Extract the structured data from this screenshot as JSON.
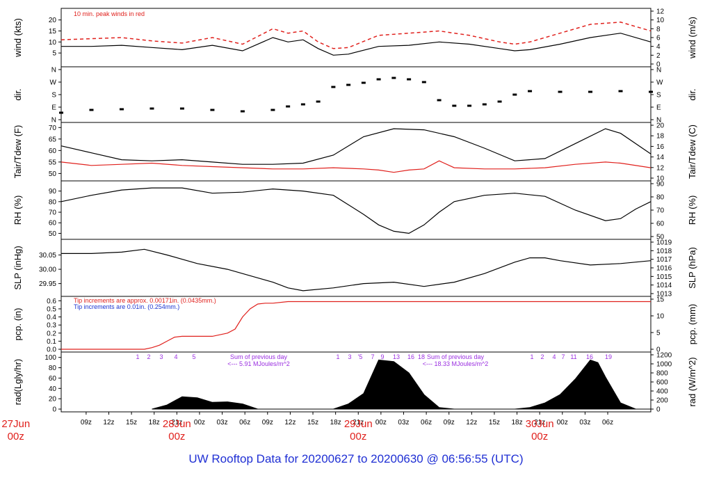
{
  "title": "UW Rooftop Data for 20200627  to  20200630 @ 06:56:55  (UTC)",
  "colors": {
    "red": "#e0201c",
    "blue": "#1c34d0",
    "purple": "#9a2ee0",
    "title_blue": "#1f2fd4"
  },
  "chart_data": [
    {
      "id": "wind",
      "type": "line",
      "ylabel_left": "wind (kts)",
      "ylabel_right": "wind (m/s)",
      "yticks_left": [
        "5",
        "10",
        "15",
        "20"
      ],
      "yticks_right": [
        "0",
        "2",
        "4",
        "6",
        "8",
        "10",
        "12"
      ],
      "ylim": [
        0,
        24
      ],
      "annotation": "10 min. peak winds in red",
      "series": [
        {
          "name": "wind",
          "color": "#000000",
          "x": [
            0,
            4,
            8,
            12,
            16,
            20,
            24,
            28,
            30,
            32,
            34,
            36,
            38,
            42,
            46,
            50,
            54,
            58,
            60,
            62,
            66,
            70,
            74,
            78
          ],
          "values": [
            8,
            8,
            8.5,
            7.5,
            6.5,
            8.5,
            6,
            12,
            10,
            11,
            7,
            4,
            4.5,
            8,
            8.5,
            10,
            9,
            7,
            6,
            6.5,
            9,
            12,
            14,
            10
          ]
        },
        {
          "name": "10 min. peak",
          "color": "#e0201c",
          "x": [
            0,
            4,
            8,
            12,
            16,
            20,
            24,
            28,
            30,
            32,
            34,
            36,
            38,
            42,
            46,
            50,
            54,
            58,
            60,
            62,
            66,
            70,
            74,
            78
          ],
          "values": [
            11,
            11.5,
            12,
            10.5,
            9.5,
            12,
            9,
            16,
            14,
            15,
            10,
            7,
            7.5,
            13,
            14,
            15,
            13,
            10,
            9,
            10,
            14,
            18,
            19,
            15
          ]
        }
      ]
    },
    {
      "id": "dir",
      "type": "scatter",
      "ylabel_left": "dir.",
      "ylabel_right": "dir.",
      "yticks_left": [
        "N",
        "E",
        "S",
        "W",
        "N"
      ],
      "yticks_right": [
        "N",
        "E",
        "S",
        "W",
        "N"
      ],
      "ylim": [
        0,
        360
      ],
      "series": [
        {
          "name": "direction",
          "x": [
            0,
            4,
            8,
            12,
            16,
            20,
            24,
            28,
            30,
            32,
            34,
            36,
            38,
            40,
            42,
            44,
            46,
            48,
            50,
            52,
            54,
            56,
            58,
            60,
            62,
            66,
            70,
            74,
            78
          ],
          "values": [
            50,
            70,
            75,
            80,
            80,
            70,
            60,
            70,
            95,
            110,
            130,
            235,
            250,
            265,
            290,
            300,
            290,
            270,
            140,
            100,
            100,
            110,
            130,
            180,
            205,
            200,
            200,
            205,
            200
          ]
        }
      ]
    },
    {
      "id": "temp",
      "type": "line",
      "ylabel_left": "Tair/Tdew (F)",
      "ylabel_right": "Tair/Tdew (C)",
      "yticks_left": [
        "50",
        "55",
        "60",
        "65",
        "70"
      ],
      "yticks_right": [
        "10",
        "12",
        "14",
        "16",
        "18",
        "20"
      ],
      "ylim": [
        48,
        71
      ],
      "series": [
        {
          "name": "Tair",
          "color": "#000000",
          "x": [
            0,
            4,
            8,
            12,
            16,
            20,
            24,
            28,
            32,
            36,
            40,
            44,
            48,
            52,
            56,
            60,
            64,
            68,
            72,
            74,
            78
          ],
          "values": [
            62,
            59,
            56,
            55.5,
            56,
            55,
            54,
            54,
            54.5,
            58,
            66,
            69.5,
            69,
            66,
            61,
            55.5,
            56.5,
            63,
            69.5,
            67.5,
            58.5
          ]
        },
        {
          "name": "Tdew",
          "color": "#e0201c",
          "x": [
            0,
            4,
            8,
            12,
            16,
            20,
            24,
            28,
            32,
            36,
            40,
            42,
            44,
            46,
            48,
            50,
            52,
            56,
            60,
            64,
            68,
            72,
            74,
            78
          ],
          "values": [
            55,
            53.5,
            54,
            54.5,
            53.5,
            53,
            52.5,
            52,
            52,
            52.5,
            52,
            51.5,
            50.5,
            51.5,
            52,
            55.5,
            52.5,
            52,
            52,
            52.5,
            54,
            55,
            54.5,
            52.5
          ]
        }
      ]
    },
    {
      "id": "rh",
      "type": "line",
      "ylabel_left": "RH (%)",
      "ylabel_right": "RH (%)",
      "yticks_left": [
        "50",
        "60",
        "70",
        "80",
        "90"
      ],
      "yticks_right": [
        "50",
        "60",
        "70",
        "80",
        "90"
      ],
      "ylim": [
        47,
        97
      ],
      "series": [
        {
          "name": "RH",
          "color": "#000000",
          "x": [
            0,
            4,
            8,
            12,
            16,
            20,
            24,
            28,
            32,
            36,
            40,
            42,
            44,
            46,
            48,
            50,
            52,
            56,
            60,
            64,
            68,
            72,
            74,
            76,
            78
          ],
          "values": [
            80,
            86,
            91,
            93,
            93,
            88,
            89,
            92,
            90,
            86,
            68,
            58,
            52,
            50,
            58,
            70,
            80,
            86,
            88,
            85,
            72,
            62,
            64,
            73,
            80
          ]
        }
      ]
    },
    {
      "id": "slp",
      "type": "line",
      "ylabel_left": "SLP (inHg)",
      "ylabel_right": "SLP (hPa)",
      "yticks_left": [
        "29.95",
        "30.00",
        "30.05"
      ],
      "yticks_right": [
        "1013",
        "1014",
        "1015",
        "1016",
        "1017",
        "1018",
        "1019"
      ],
      "ylim": [
        29.915,
        30.095
      ],
      "series": [
        {
          "name": "SLP",
          "color": "#000000",
          "x": [
            0,
            4,
            8,
            11,
            14,
            18,
            22,
            26,
            28,
            30,
            32,
            36,
            40,
            44,
            48,
            52,
            56,
            60,
            62,
            64,
            66,
            70,
            74,
            78
          ],
          "values": [
            30.055,
            30.055,
            30.06,
            30.07,
            30.05,
            30.02,
            30.0,
            29.97,
            29.955,
            29.935,
            29.925,
            29.935,
            29.95,
            29.955,
            29.94,
            29.955,
            29.985,
            30.025,
            30.04,
            30.04,
            30.03,
            30.015,
            30.02,
            30.03
          ]
        }
      ]
    },
    {
      "id": "pcp",
      "type": "line",
      "ylabel_left": "pcp. (in)",
      "ylabel_right": "pcp. (mm)",
      "yticks_left": [
        "0.0",
        "0.1",
        "0.2",
        "0.3",
        "0.4",
        "0.5",
        "0.6"
      ],
      "yticks_right": [
        "0",
        "5",
        "10",
        "15"
      ],
      "ylim": [
        0,
        0.62
      ],
      "annotations": [
        "Tip increments are approx. 0.00171in. (0.0435mm.)",
        "Tip increments are 0.01in. (0.254mm.)"
      ],
      "series": [
        {
          "name": "pcp",
          "color": "#e0201c",
          "x": [
            0,
            11,
            12,
            13,
            14,
            15,
            16,
            20,
            22,
            23,
            24,
            25,
            26,
            27,
            28,
            30,
            40,
            78
          ],
          "values": [
            0,
            0,
            0.02,
            0.05,
            0.1,
            0.15,
            0.16,
            0.16,
            0.2,
            0.25,
            0.4,
            0.5,
            0.56,
            0.57,
            0.57,
            0.59,
            0.59,
            0.59
          ]
        }
      ]
    },
    {
      "id": "rad",
      "type": "area",
      "ylabel_left": "rad(Lgly/hr)",
      "ylabel_right": "rad (W/m^2)",
      "yticks_left": [
        "0",
        "20",
        "40",
        "60",
        "80",
        "100"
      ],
      "yticks_right": [
        "0",
        "200",
        "400",
        "600",
        "800",
        "1000",
        "1200"
      ],
      "ylim": [
        0,
        105
      ],
      "daily_sums": [
        {
          "label1": "Sum of previous day",
          "label2": "<--- 5.91 MJoules/m^2"
        },
        {
          "label1": "Sum of previous day",
          "label2": "<--- 18.33 MJoules/m^2"
        }
      ],
      "hour_marks": [
        "1",
        "2",
        "3",
        "4",
        "5",
        "1",
        "3",
        "'5",
        "7",
        "9",
        "13",
        "16",
        "18",
        "1",
        "2",
        "4",
        "7",
        "11",
        "16",
        "19"
      ],
      "series": [
        {
          "name": "radiation",
          "color": "#000000",
          "x": [
            12,
            14,
            16,
            18,
            20,
            22,
            24,
            26,
            36,
            38,
            40,
            42,
            44,
            46,
            48,
            50,
            52,
            60,
            62,
            64,
            66,
            68,
            70,
            71,
            72,
            74,
            76,
            78
          ],
          "values": [
            0,
            8,
            24,
            22,
            13,
            14,
            10,
            0,
            0,
            10,
            30,
            95,
            92,
            70,
            28,
            3,
            0,
            0,
            3,
            12,
            28,
            58,
            95,
            90,
            62,
            12,
            0,
            0
          ]
        }
      ]
    }
  ],
  "x_ticks": [
    "09z",
    "12z",
    "15z",
    "18z",
    "21z",
    "00z",
    "03z",
    "06z",
    "09z",
    "12z",
    "15z",
    "18z",
    "21z",
    "00z",
    "03z",
    "06z",
    "09z",
    "12z",
    "15z",
    "18z",
    "21z",
    "00z",
    "03z",
    "06z"
  ],
  "day_labels": [
    {
      "date": "27Jun",
      "time": "00z"
    },
    {
      "date": "28Jun",
      "time": "00z"
    },
    {
      "date": "29Jun",
      "time": "00z"
    },
    {
      "date": "30Jun",
      "time": "00z"
    }
  ]
}
